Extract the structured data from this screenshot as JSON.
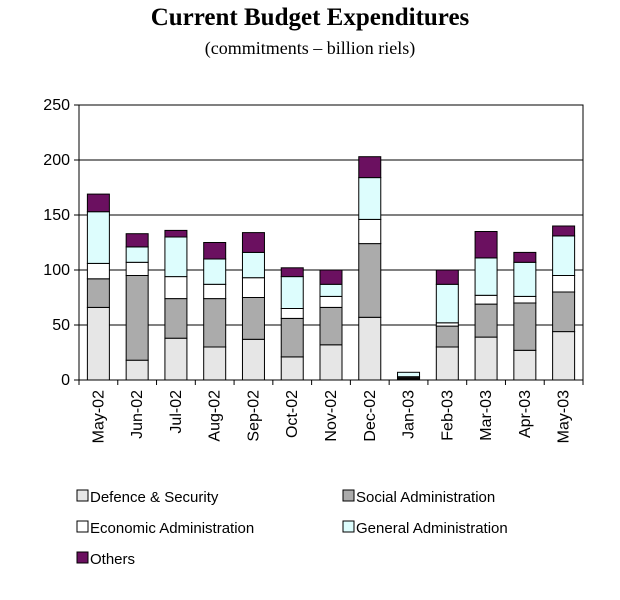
{
  "chart_data": {
    "type": "bar",
    "stacked": true,
    "title": "Current Budget Expenditures",
    "subtitle": "(commitments – billion riels)",
    "categories": [
      "May-02",
      "Jun-02",
      "Jul-02",
      "Aug-02",
      "Sep-02",
      "Oct-02",
      "Nov-02",
      "Dec-02",
      "Jan-03",
      "Feb-03",
      "Mar-03",
      "Apr-03",
      "May-03"
    ],
    "ylim": [
      0,
      250
    ],
    "yticks": [
      "0",
      "50",
      "100",
      "150",
      "200",
      "250"
    ],
    "grid": true,
    "legend_position": "bottom",
    "series": [
      {
        "name": "Defence & Security",
        "color": "#e6e6e6",
        "values": [
          66,
          18,
          38,
          30,
          37,
          21,
          32,
          57,
          1,
          30,
          39,
          27,
          44
        ]
      },
      {
        "name": "Social Administration",
        "color": "#ababab",
        "values": [
          26,
          77,
          36,
          44,
          38,
          35,
          34,
          67,
          1,
          19,
          30,
          43,
          36
        ]
      },
      {
        "name": "Economic Administration",
        "color": "#ffffff",
        "values": [
          14,
          12,
          20,
          13,
          18,
          9,
          10,
          22,
          1,
          3,
          8,
          6,
          15
        ]
      },
      {
        "name": "General Administration",
        "color": "#ddfdfd",
        "values": [
          47,
          14,
          36,
          23,
          23,
          29,
          11,
          38,
          4,
          35,
          34,
          31,
          36
        ]
      },
      {
        "name": "Others",
        "color": "#6b1060",
        "values": [
          16,
          12,
          6,
          15,
          18,
          8,
          13,
          19,
          0,
          13,
          24,
          9,
          9
        ]
      }
    ]
  }
}
